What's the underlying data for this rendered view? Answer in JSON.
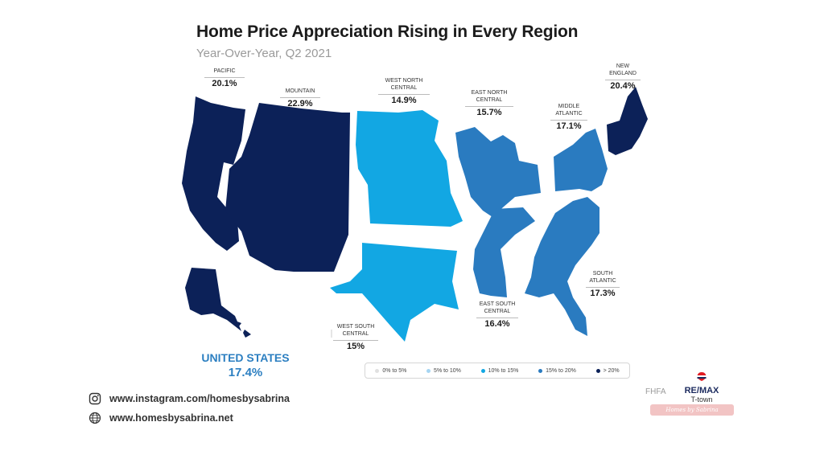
{
  "title": "Home Price Appreciation Rising in Every Region",
  "subtitle": "Year-Over-Year, Q2 2021",
  "colors": {
    "bin_0_5": "#e0e0e0",
    "bin_5_10": "#a6d5f2",
    "bin_10_15": "#12a7e3",
    "bin_15_20": "#2a7bc0",
    "bin_20_plus": "#0c2158",
    "accent": "#2c7fc1"
  },
  "regions": [
    {
      "name": "PACIFIC",
      "value": "20.1%"
    },
    {
      "name": "MOUNTAIN",
      "value": "22.9%"
    },
    {
      "name": "WEST NORTH CENTRAL",
      "value": "14.9%"
    },
    {
      "name": "EAST NORTH CENTRAL",
      "value": "15.7%"
    },
    {
      "name": "MIDDLE ATLANTIC",
      "value": "17.1%"
    },
    {
      "name": "NEW ENGLAND",
      "value": "20.4%"
    },
    {
      "name": "SOUTH ATLANTIC",
      "value": "17.3%"
    },
    {
      "name": "EAST SOUTH CENTRAL",
      "value": "16.4%"
    },
    {
      "name": "WEST SOUTH CENTRAL",
      "value": "15%"
    }
  ],
  "national": {
    "name": "UNITED STATES",
    "value": "17.4%"
  },
  "legend": [
    "0% to 5%",
    "5% to 10%",
    "10% to 15%",
    "15% to 20%",
    "> 20%"
  ],
  "contacts": {
    "instagram": "www.instagram.com/homesbysabrina",
    "website": "www.homesbysabrina.net"
  },
  "source": "FHFA",
  "brand": {
    "name": "RE/MAX",
    "sub": "T-town",
    "signature": "Homes by Sabrina"
  }
}
